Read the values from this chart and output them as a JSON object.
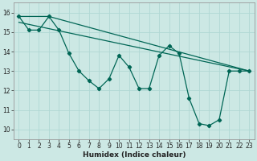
{
  "background_color": "#cce8e4",
  "grid_color": "#b0d8d4",
  "line_color": "#006655",
  "xlabel": "Humidex (Indice chaleur)",
  "xlim": [
    -0.5,
    23.5
  ],
  "ylim": [
    9.5,
    16.5
  ],
  "yticks": [
    10,
    11,
    12,
    13,
    14,
    15,
    16
  ],
  "xticks": [
    0,
    1,
    2,
    3,
    4,
    5,
    6,
    7,
    8,
    9,
    10,
    11,
    12,
    13,
    14,
    15,
    16,
    17,
    18,
    19,
    20,
    21,
    22,
    23
  ],
  "series1_x": [
    0,
    1,
    2,
    3,
    4,
    5,
    6,
    7,
    8,
    9,
    10,
    11,
    12,
    13,
    14,
    15,
    16,
    17,
    18,
    19,
    20,
    21,
    22,
    23
  ],
  "series1_y": [
    15.8,
    15.1,
    15.1,
    15.8,
    15.1,
    13.9,
    13.0,
    12.5,
    12.1,
    12.6,
    13.8,
    13.2,
    12.1,
    12.1,
    13.8,
    14.3,
    13.9,
    11.6,
    10.3,
    10.2,
    10.5,
    13.0,
    13.0,
    13.0
  ],
  "series2_x": [
    0,
    3,
    23
  ],
  "series2_y": [
    15.8,
    15.8,
    13.0
  ],
  "series3_x": [
    0,
    23
  ],
  "series3_y": [
    15.5,
    13.0
  ],
  "xlabel_fontsize": 6.5,
  "tick_fontsize": 5.5
}
